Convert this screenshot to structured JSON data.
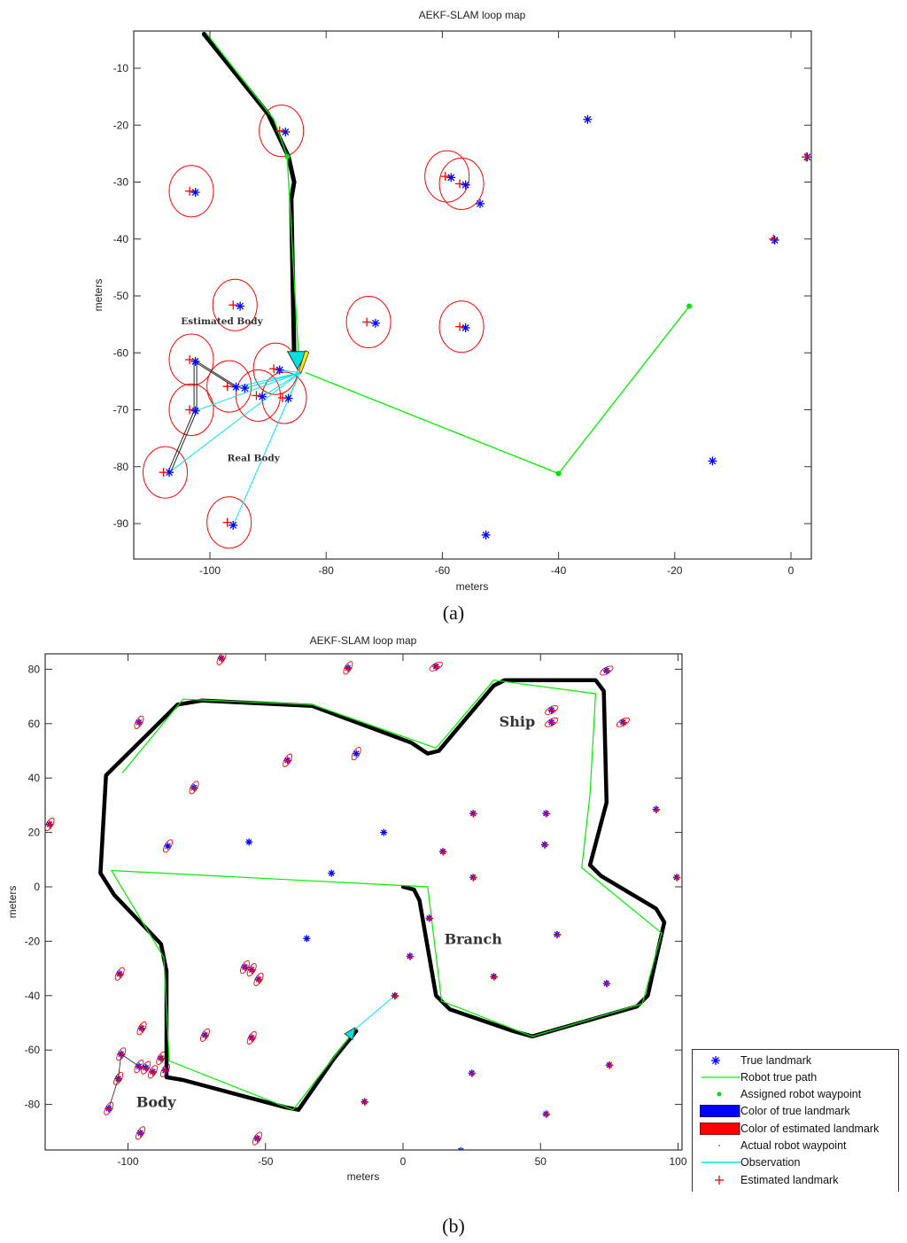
{
  "chart_data": [
    {
      "type": "scatter",
      "panel": "a",
      "title": "AEKF-SLAM loop map",
      "xlabel": "meters",
      "ylabel": "meters",
      "xlim": [
        -113,
        3
      ],
      "ylim": [
        -96,
        -4
      ],
      "xticks": [
        -100,
        -80,
        -60,
        -40,
        -20,
        0
      ],
      "yticks": [
        -10,
        -20,
        -30,
        -40,
        -50,
        -60,
        -70,
        -80,
        -90
      ],
      "grid": false,
      "annotations": [
        {
          "text": "Estimated Body",
          "x": -105,
          "y": -55
        },
        {
          "text": "Real Body",
          "x": -97,
          "y": -79
        }
      ],
      "true_landmarks": [
        [
          -87,
          -21.2
        ],
        [
          -102.5,
          -31.8
        ],
        [
          -58.5,
          -29.2
        ],
        [
          -56,
          -30.5
        ],
        [
          -53.5,
          -33.8
        ],
        [
          -35,
          -19
        ],
        [
          2.8,
          -25.6
        ],
        [
          -2.8,
          -40.2
        ],
        [
          -94.8,
          -51.8
        ],
        [
          -71.5,
          -54.8
        ],
        [
          -56,
          -55.6
        ],
        [
          -102.5,
          -61.5
        ],
        [
          -95.5,
          -66
        ],
        [
          -94,
          -66.2
        ],
        [
          -88,
          -63
        ],
        [
          -91,
          -67.7
        ],
        [
          -86.5,
          -68
        ],
        [
          -102.5,
          -70.2
        ],
        [
          -107,
          -81
        ],
        [
          -96,
          -90.3
        ],
        [
          -13.5,
          -79
        ],
        [
          -52.5,
          -92
        ]
      ],
      "estimated_landmarks": [
        [
          -88,
          -21
        ],
        [
          -103.5,
          -31.6
        ],
        [
          -59.5,
          -29
        ],
        [
          -57,
          -30.3
        ],
        [
          -3,
          -40
        ],
        [
          2.6,
          -25.6
        ],
        [
          -96,
          -51.6
        ],
        [
          -73,
          -54.6
        ],
        [
          -57,
          -55.4
        ],
        [
          -103.5,
          -61.2
        ],
        [
          -97,
          -65.9
        ],
        [
          -89,
          -62.8
        ],
        [
          -92,
          -67.5
        ],
        [
          -87.5,
          -67.9
        ],
        [
          -103.5,
          -70
        ],
        [
          -108,
          -81
        ],
        [
          -97,
          -89.8
        ]
      ],
      "robot_true_path": [
        [
          -100.5,
          -4
        ],
        [
          -89,
          -19
        ],
        [
          -86.7,
          -25.5
        ],
        [
          -84.7,
          -61.5
        ]
      ],
      "actual_robot_path": [
        [
          -101,
          -4
        ],
        [
          -90,
          -18
        ],
        [
          -86.5,
          -25.5
        ],
        [
          -85.5,
          -30
        ],
        [
          -86,
          -33
        ],
        [
          -85.5,
          -60
        ]
      ],
      "assigned_waypoints": [
        [
          -86.7,
          -25.5
        ],
        [
          -40,
          -81.2
        ],
        [
          -17.5,
          -51.8
        ]
      ],
      "assigned_path_from_robot": [
        [
          -83.5,
          -63.5
        ],
        [
          -40,
          -81.2
        ],
        [
          -17.5,
          -51.8
        ]
      ],
      "robot_pose": {
        "x": -84.5,
        "y": -63.5
      }
    },
    {
      "type": "scatter",
      "panel": "b",
      "title": "AEKF-SLAM loop map",
      "xlabel": "meters",
      "ylabel": "meters",
      "xlim": [
        -130,
        101
      ],
      "ylim": [
        -97,
        86
      ],
      "xticks": [
        -100,
        -50,
        0,
        50,
        100
      ],
      "yticks": [
        80,
        60,
        40,
        20,
        0,
        -20,
        -40,
        -60,
        -80
      ],
      "grid": false,
      "annotations": [
        {
          "text": "Ship",
          "x": 35,
          "y": 59
        },
        {
          "text": "Branch",
          "x": 15,
          "y": -21
        },
        {
          "text": "Body",
          "x": -97,
          "y": -81
        }
      ],
      "legend": [
        "True landmark",
        "Robot true path",
        "Assigned robot waypoint",
        "Color of true landmark",
        "Color of estimated landmark",
        "Actual robot waypoint",
        "Observation",
        "Estimated landmark"
      ],
      "legend_position": "lower right outside",
      "true_landmarks": [
        [
          -66,
          84
        ],
        [
          -20,
          80.5
        ],
        [
          12,
          81
        ],
        [
          -96,
          60.5
        ],
        [
          -42,
          46.5
        ],
        [
          -17,
          49
        ],
        [
          -76,
          36.5
        ],
        [
          -128.5,
          23
        ],
        [
          -85.5,
          15
        ],
        [
          -56,
          16.5
        ],
        [
          -7,
          20
        ],
        [
          -26,
          5
        ],
        [
          14.5,
          13
        ],
        [
          25.5,
          27
        ],
        [
          52,
          27
        ],
        [
          51.5,
          15.5
        ],
        [
          25.5,
          3.5
        ],
        [
          -35,
          -19
        ],
        [
          9.5,
          -11.5
        ],
        [
          56,
          -17.5
        ],
        [
          -103,
          -32
        ],
        [
          -57.5,
          -29.5
        ],
        [
          -55,
          -30.5
        ],
        [
          -52.5,
          -34
        ],
        [
          2.5,
          -25.5
        ],
        [
          33,
          -33
        ],
        [
          74,
          -35.5
        ],
        [
          -3,
          -40
        ],
        [
          -95,
          -52
        ],
        [
          -72,
          -54.5
        ],
        [
          -55,
          -55.5
        ],
        [
          -102.5,
          -61.5
        ],
        [
          -96,
          -66
        ],
        [
          -93.5,
          -66.5
        ],
        [
          -88,
          -63
        ],
        [
          -91,
          -68
        ],
        [
          -86.5,
          -67.5
        ],
        [
          -103.5,
          -70.5
        ],
        [
          -107,
          -81.5
        ],
        [
          -95.5,
          -90.5
        ],
        [
          -53,
          -92.5
        ],
        [
          -14,
          -79
        ],
        [
          25,
          -68.5
        ],
        [
          52,
          -83.5
        ],
        [
          75,
          -65.5
        ],
        [
          21,
          -97
        ],
        [
          54,
          60.5
        ],
        [
          54,
          65
        ],
        [
          80,
          60.5
        ],
        [
          74,
          79.5
        ],
        [
          92,
          28.5
        ],
        [
          99.5,
          3.5
        ]
      ],
      "robot_true_path": [
        [
          -102,
          42
        ],
        [
          -80,
          69
        ],
        [
          -33,
          67
        ],
        [
          12,
          51
        ],
        [
          33,
          76
        ],
        [
          70,
          71
        ],
        [
          68,
          34
        ],
        [
          65,
          7
        ],
        [
          94,
          -17
        ],
        [
          87,
          -43
        ],
        [
          47,
          -55
        ],
        [
          14,
          -42
        ],
        [
          9,
          0
        ],
        [
          -106,
          6
        ],
        [
          -87,
          -26
        ],
        [
          -85,
          -64
        ],
        [
          -40,
          -82
        ],
        [
          -17,
          -52
        ]
      ],
      "actual_robot_path": [
        [
          0,
          0
        ],
        [
          4,
          -1
        ],
        [
          6,
          -5
        ],
        [
          12,
          -40
        ],
        [
          17,
          -45
        ],
        [
          40,
          -53
        ],
        [
          47,
          -55
        ],
        [
          85,
          -44
        ],
        [
          89,
          -40
        ],
        [
          95,
          -13
        ],
        [
          92,
          -8
        ],
        [
          72,
          4
        ],
        [
          68,
          8
        ],
        [
          74,
          31
        ],
        [
          73,
          72
        ],
        [
          70,
          76
        ],
        [
          37,
          76
        ],
        [
          33,
          74
        ],
        [
          13,
          50
        ],
        [
          9,
          49
        ],
        [
          3,
          53
        ],
        [
          -33,
          66.5
        ],
        [
          -73,
          68.5
        ],
        [
          -82,
          67
        ],
        [
          -108,
          41
        ],
        [
          -110,
          5
        ],
        [
          -105,
          -3
        ],
        [
          -88,
          -21
        ],
        [
          -86,
          -31
        ],
        [
          -86,
          -70
        ],
        [
          -80,
          -71
        ],
        [
          -43,
          -81
        ],
        [
          -38,
          -82
        ],
        [
          -25,
          -63
        ],
        [
          -17,
          -53
        ]
      ],
      "robot_pose": {
        "x": -19,
        "y": -55
      },
      "observation": [
        [
          -17,
          -52
        ],
        [
          -3,
          -40
        ]
      ]
    }
  ],
  "captions": {
    "a": "(a)",
    "b": "(b)"
  },
  "colors": {
    "true_landmark": "#0000ff",
    "estimated_landmark": "#ff0000",
    "true_path": "#00ee00",
    "actual_path": "#000000",
    "observation": "#00e5ee",
    "robot_fill": "#00e0e0",
    "robot_heading": "#ffee00"
  }
}
